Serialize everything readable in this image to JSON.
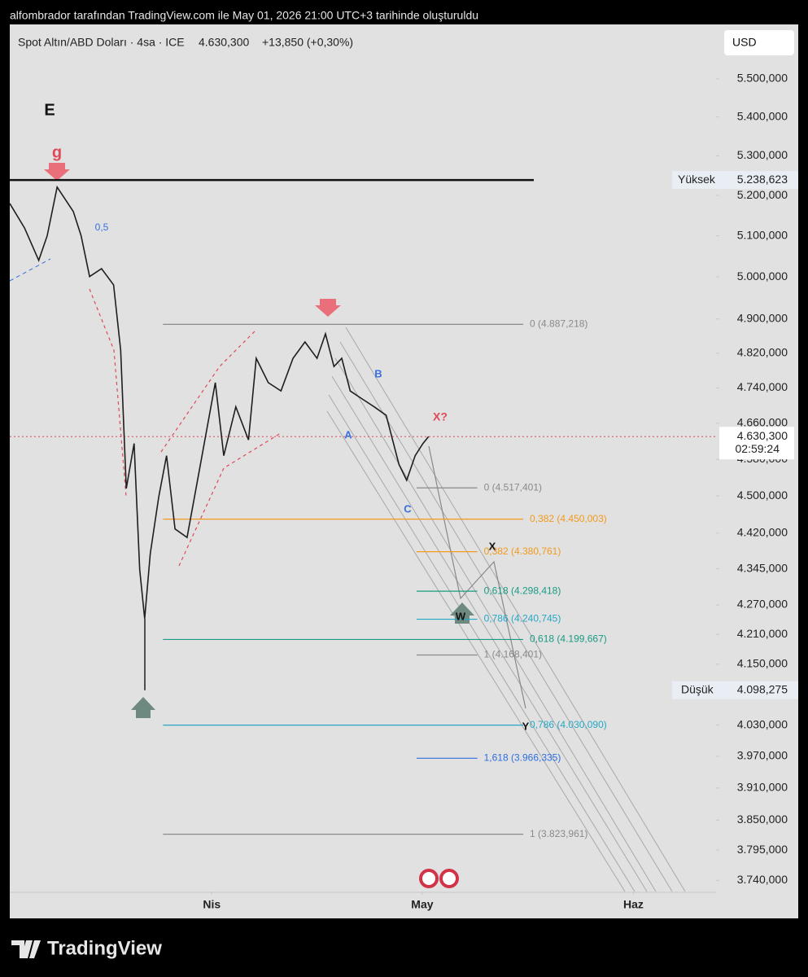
{
  "header": {
    "caption": "alfombrador tarafından TradingView.com ile May 01, 2026 21:00 UTC+3 tarihinde oluşturuldu",
    "symbol": "Spot Altın/ABD Doları · 4sa · ICE",
    "price": "4.630,300",
    "change": "+13,850 (+0,30%)",
    "currency": "USD"
  },
  "chart_data": {
    "type": "line",
    "log_scale": true,
    "grid": false,
    "color": "#1e1e1e",
    "x": [
      0,
      2.1,
      4.1,
      5.3,
      6.7,
      9,
      10.1,
      11.3,
      13,
      14.7,
      15.7,
      16.5,
      17.6,
      18.4,
      19.1,
      19.9,
      21.1,
      22.2,
      23.4,
      25.1,
      26.8,
      29.1,
      30.3,
      32,
      33.8,
      34.9,
      36.6,
      38.4,
      40.1,
      41.8,
      43.5,
      44.7,
      45.9,
      47,
      48.2,
      49.9,
      51.6,
      53.3,
      55.1,
      56.2,
      57.4,
      58.5,
      59.3
    ],
    "values": [
      5180,
      5119,
      5040,
      5100,
      5221,
      5160,
      5100,
      5001,
      5020,
      4981,
      4827,
      4516,
      4615,
      4343,
      4242,
      4377,
      4498,
      4588,
      4429,
      4411,
      4552,
      4752,
      4588,
      4697,
      4623,
      4808,
      4752,
      4733,
      4808,
      4846,
      4808,
      4865,
      4789,
      4808,
      4733,
      4715,
      4697,
      4678,
      4569,
      4534,
      4588,
      4615,
      4630.3
    ],
    "xlim": [
      0,
      100
    ],
    "xticks": [
      {
        "value": 28.6,
        "label": "Nis"
      },
      {
        "value": 58.4,
        "label": "May"
      },
      {
        "value": 88.3,
        "label": "Haz"
      }
    ],
    "ylim": [
      3720,
      5646
    ],
    "yticks": [
      {
        "value": 5500,
        "label": "5.500,000"
      },
      {
        "value": 5400,
        "label": "5.400,000"
      },
      {
        "value": 5300,
        "label": "5.300,000"
      },
      {
        "value": 5200,
        "label": "5.200,000"
      },
      {
        "value": 5100,
        "label": "5.100,000"
      },
      {
        "value": 5000,
        "label": "5.000,000"
      },
      {
        "value": 4900,
        "label": "4.900,000"
      },
      {
        "value": 4820,
        "label": "4.820,000"
      },
      {
        "value": 4740,
        "label": "4.740,000"
      },
      {
        "value": 4660,
        "label": "4.660,000"
      },
      {
        "value": 4580,
        "label": "4.580,000"
      },
      {
        "value": 4500,
        "label": "4.500,000"
      },
      {
        "value": 4420,
        "label": "4.420,000"
      },
      {
        "value": 4345,
        "label": "4.345,000"
      },
      {
        "value": 4270,
        "label": "4.270,000"
      },
      {
        "value": 4210,
        "label": "4.210,000"
      },
      {
        "value": 4150,
        "label": "4.150,000"
      },
      {
        "value": 4030,
        "label": "4.030,000"
      },
      {
        "value": 3970,
        "label": "3.970,000"
      },
      {
        "value": 3910,
        "label": "3.910,000"
      },
      {
        "value": 3850,
        "label": "3.850,000"
      },
      {
        "value": 3795,
        "label": "3.795,000"
      },
      {
        "value": 3740,
        "label": "3.740,000"
      }
    ],
    "markers": [
      {
        "label": "Yüksek",
        "value": 5238.623,
        "value_label": "5.238,623"
      },
      {
        "label": "Düşük",
        "value": 4098.275,
        "value_label": "4.098,275"
      }
    ],
    "last": {
      "value": 4630.3,
      "value_label": "4.630,300",
      "countdown": "02:59:24"
    },
    "levels": [
      {
        "label": "0 (4.887,218)",
        "value": 4887.218,
        "color": "#8a8a8a",
        "x": [
          21.7,
          72.7
        ]
      },
      {
        "label": "0,382 (4.450,003)",
        "value": 4450.003,
        "color": "#f29a1c",
        "x": [
          21.7,
          72.7
        ]
      },
      {
        "label": "0,618 (4.199,667)",
        "value": 4199.667,
        "color": "#1a9a84",
        "x": [
          21.7,
          72.7
        ]
      },
      {
        "label": "0,786 (4.030,090)",
        "value": 4030.09,
        "color": "#25a8c6",
        "x": [
          21.7,
          72.7
        ]
      },
      {
        "label": "1 (3.823,961)",
        "value": 3823.961,
        "color": "#8a8a8a",
        "x": [
          21.7,
          72.7
        ]
      },
      {
        "label": "0 (4.517,401)",
        "value": 4517.401,
        "color": "#8a8a8a",
        "x": [
          57.6,
          66.2
        ]
      },
      {
        "label": "0,382 (4.380,761)",
        "value": 4380.761,
        "color": "#f29a1c",
        "x": [
          57.6,
          66.2
        ]
      },
      {
        "label": "0,618 (4.298,418)",
        "value": 4298.418,
        "color": "#1a9a84",
        "x": [
          57.6,
          66.2
        ]
      },
      {
        "label": "0,786 (4.240,745)",
        "value": 4240.745,
        "color": "#25a8c6",
        "x": [
          57.6,
          66.2
        ]
      },
      {
        "label": "1 (4.168,401)",
        "value": 4168.401,
        "color": "#8a8a8a",
        "x": [
          57.6,
          66.2
        ]
      },
      {
        "label": "1,618 (3.966,335)",
        "value": 3966.335,
        "color": "#2f6fe0",
        "x": [
          57.6,
          66.2
        ]
      }
    ],
    "annotations": [
      "E",
      "g",
      "0,5",
      "A",
      "B",
      "C",
      "X?",
      "X",
      "W",
      "Y"
    ]
  },
  "footer": {
    "logo": "TradingView"
  }
}
